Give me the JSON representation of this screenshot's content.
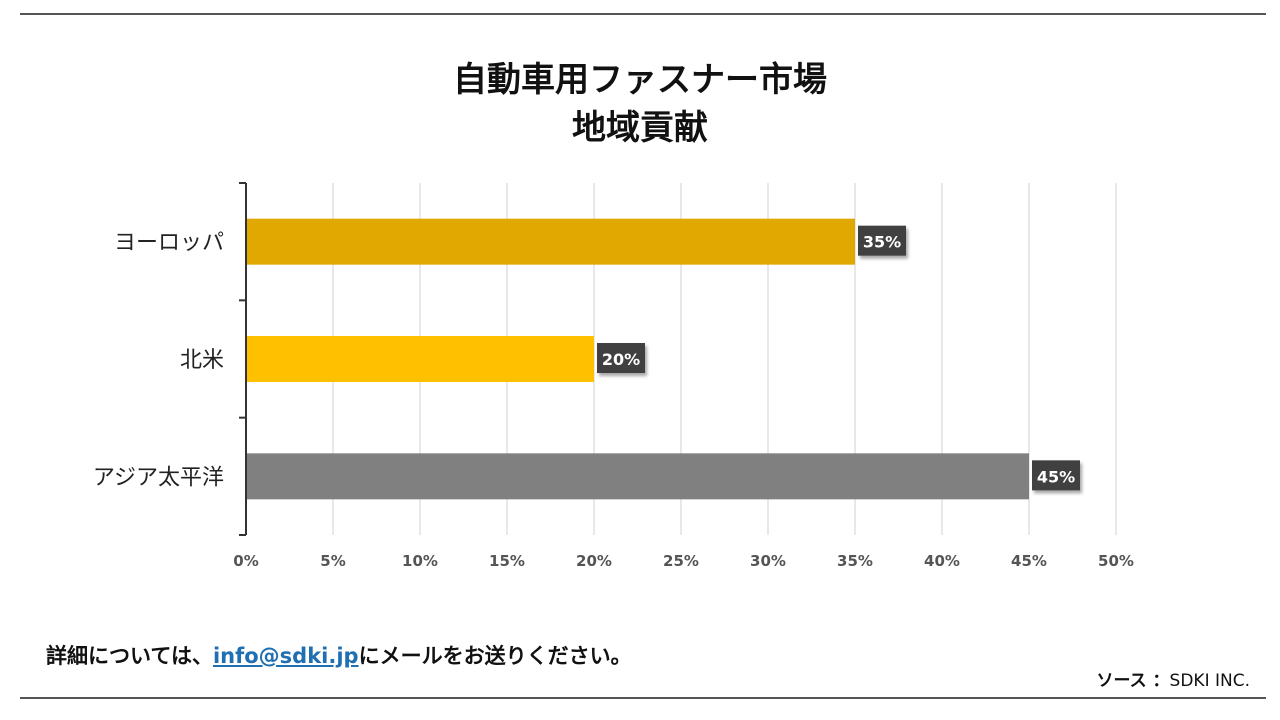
{
  "chart_data": {
    "type": "bar",
    "orientation": "horizontal",
    "title": "自動車用ファスナー市場",
    "subtitle": "地域貢献",
    "categories": [
      "ヨーロッパ",
      "北米",
      "アジア太平洋"
    ],
    "values": [
      35,
      20,
      45
    ],
    "data_labels": [
      "35%",
      "20%",
      "45%"
    ],
    "bar_colors": [
      "#E0A800",
      "#FFC000",
      "#808080"
    ],
    "xlim": [
      0,
      50
    ],
    "xticks": [
      0,
      5,
      10,
      15,
      20,
      25,
      30,
      35,
      40,
      45,
      50
    ],
    "xtick_labels": [
      "0%",
      "5%",
      "10%",
      "15%",
      "20%",
      "25%",
      "30%",
      "35%",
      "40%",
      "45%",
      "50%"
    ],
    "grid": true,
    "legend": "none"
  },
  "footer": {
    "prefix": "詳細については、",
    "email": "info@sdki.jp",
    "suffix": "にメールをお送りください。"
  },
  "source": {
    "label": "ソース ：",
    "value": "SDKI INC."
  },
  "colors": {
    "label_bg": "#404040",
    "grid": "#d0d0d0",
    "link": "#1f6fb2"
  }
}
